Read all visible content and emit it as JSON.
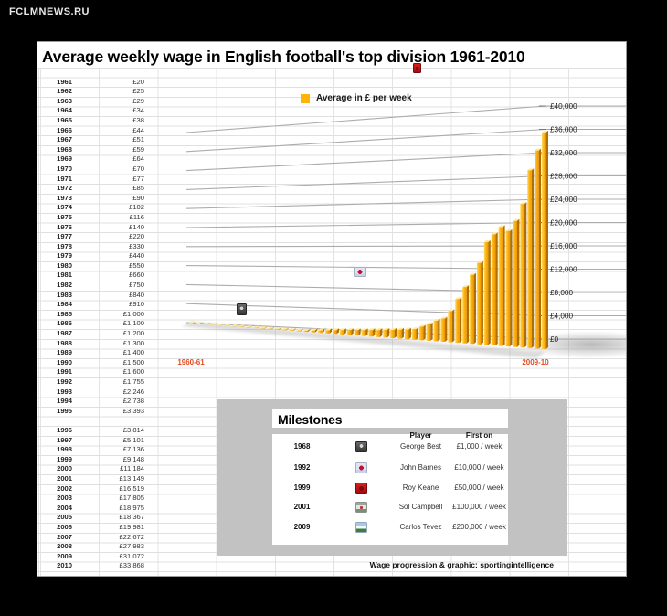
{
  "watermark": "FCLMNEWS.RU",
  "title": "Average weekly wage in English football's top division 1961-2010",
  "legend": {
    "label": "Average in £ per week",
    "swatch_color": "#FFB405"
  },
  "chart_data": {
    "type": "bar",
    "title": "Average weekly wage in English football's top division 1961-2010",
    "unit": "£ per week",
    "categories": [
      1961,
      1962,
      1963,
      1964,
      1965,
      1966,
      1967,
      1968,
      1969,
      1970,
      1971,
      1972,
      1973,
      1974,
      1975,
      1976,
      1977,
      1978,
      1979,
      1980,
      1981,
      1982,
      1983,
      1984,
      1985,
      1986,
      1987,
      1988,
      1989,
      1990,
      1991,
      1992,
      1993,
      1994,
      1995,
      1996,
      1997,
      1998,
      1999,
      2000,
      2001,
      2002,
      2003,
      2004,
      2005,
      2006,
      2007,
      2008,
      2009,
      2010
    ],
    "values": [
      20,
      25,
      29,
      34,
      38,
      44,
      51,
      59,
      64,
      70,
      77,
      85,
      90,
      102,
      116,
      140,
      220,
      330,
      440,
      550,
      660,
      750,
      840,
      910,
      1000,
      1100,
      1200,
      1300,
      1400,
      1500,
      1600,
      1755,
      2246,
      2738,
      3393,
      3814,
      5101,
      7136,
      9148,
      11184,
      13149,
      16519,
      17805,
      18975,
      18367,
      19981,
      22672,
      27983,
      31072,
      33868
    ],
    "ylim": [
      0,
      40000
    ],
    "y_tick_step": 4000,
    "y_tick_labels": [
      "£0",
      "£4,000",
      "£8,000",
      "£12,000",
      "£16,000",
      "£20,000",
      "£24,000",
      "£28,000",
      "£32,000",
      "£36,000",
      "£40,000"
    ],
    "x_start_label": "1960-61",
    "x_end_label": "2009-10",
    "bar_color": "#F8A800",
    "grid": "3d-perspective",
    "legend_position": "top-center",
    "milestone_markers": [
      {
        "icon": "man-utd-old-crest",
        "player": "George Best",
        "wage": 1000
      },
      {
        "icon": "liverpool-crest",
        "player": "John Barnes",
        "wage": 10000
      },
      {
        "icon": "man-utd-crest",
        "player": "Roy Keane",
        "wage": 50000
      }
    ]
  },
  "milestones": {
    "title": "Milestones",
    "columns": [
      "Player",
      "First on"
    ],
    "rows": [
      {
        "year": "1968",
        "crest": "man-utd-old",
        "player": "George Best",
        "first_on": "£1,000 / week"
      },
      {
        "year": "1992",
        "crest": "liverpool",
        "player": "John Barnes",
        "first_on": "£10,000 / week"
      },
      {
        "year": "1999",
        "crest": "man-utd",
        "player": "Roy Keane",
        "first_on": "£50,000 / week"
      },
      {
        "year": "2001",
        "crest": "arsenal",
        "player": "Sol Campbell",
        "first_on": "£100,000 / week"
      },
      {
        "year": "2009",
        "crest": "man-city",
        "player": "Carlos Tevez",
        "first_on": "£200,000 / week"
      }
    ]
  },
  "footer": "Wage progression & graphic: sportingintelligence"
}
